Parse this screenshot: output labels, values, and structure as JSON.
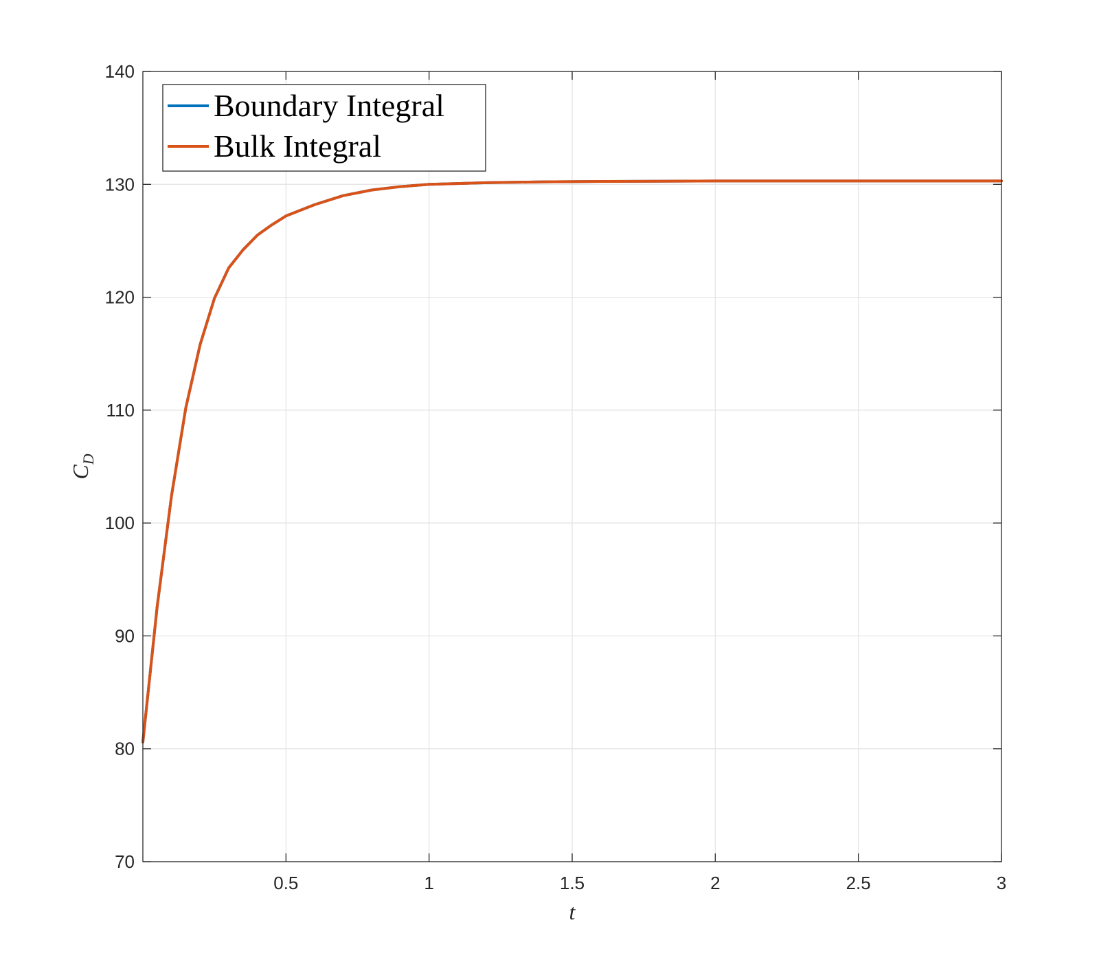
{
  "chart_data": {
    "type": "line",
    "title": "",
    "xlabel": "t",
    "ylabel": "C",
    "ylabel_subscript": "D",
    "xlim": [
      0,
      3
    ],
    "ylim": [
      70,
      140
    ],
    "xticks": [
      0.5,
      1,
      1.5,
      2,
      2.5,
      3
    ],
    "xtick_labels": [
      "0.5",
      "1",
      "1.5",
      "2",
      "2.5",
      "3"
    ],
    "yticks": [
      70,
      80,
      90,
      100,
      110,
      120,
      130,
      140
    ],
    "ytick_labels": [
      "70",
      "80",
      "90",
      "100",
      "110",
      "120",
      "130",
      "140"
    ],
    "grid": true,
    "legend_position": "top-left",
    "x": [
      0.0,
      0.05,
      0.1,
      0.15,
      0.2,
      0.25,
      0.3,
      0.35,
      0.4,
      0.45,
      0.5,
      0.6,
      0.7,
      0.8,
      0.9,
      1.0,
      1.2,
      1.4,
      1.6,
      1.8,
      2.0,
      2.2,
      2.4,
      2.6,
      2.8,
      3.0
    ],
    "series": [
      {
        "name": "Boundary Integral",
        "color": "#0072BD",
        "values": [
          80.6,
          92.6,
          102.4,
          110.2,
          115.8,
          119.9,
          122.6,
          124.2,
          125.5,
          126.4,
          127.2,
          128.2,
          129.0,
          129.5,
          129.8,
          130.0,
          130.15,
          130.22,
          130.26,
          130.28,
          130.3,
          130.3,
          130.3,
          130.3,
          130.3,
          130.3
        ]
      },
      {
        "name": "Bulk Integral",
        "color": "#D95319",
        "values": [
          80.6,
          92.6,
          102.4,
          110.2,
          115.8,
          119.9,
          122.6,
          124.2,
          125.5,
          126.4,
          127.2,
          128.2,
          129.0,
          129.5,
          129.8,
          130.0,
          130.15,
          130.22,
          130.26,
          130.28,
          130.3,
          130.3,
          130.3,
          130.3,
          130.3,
          130.3
        ]
      }
    ]
  }
}
